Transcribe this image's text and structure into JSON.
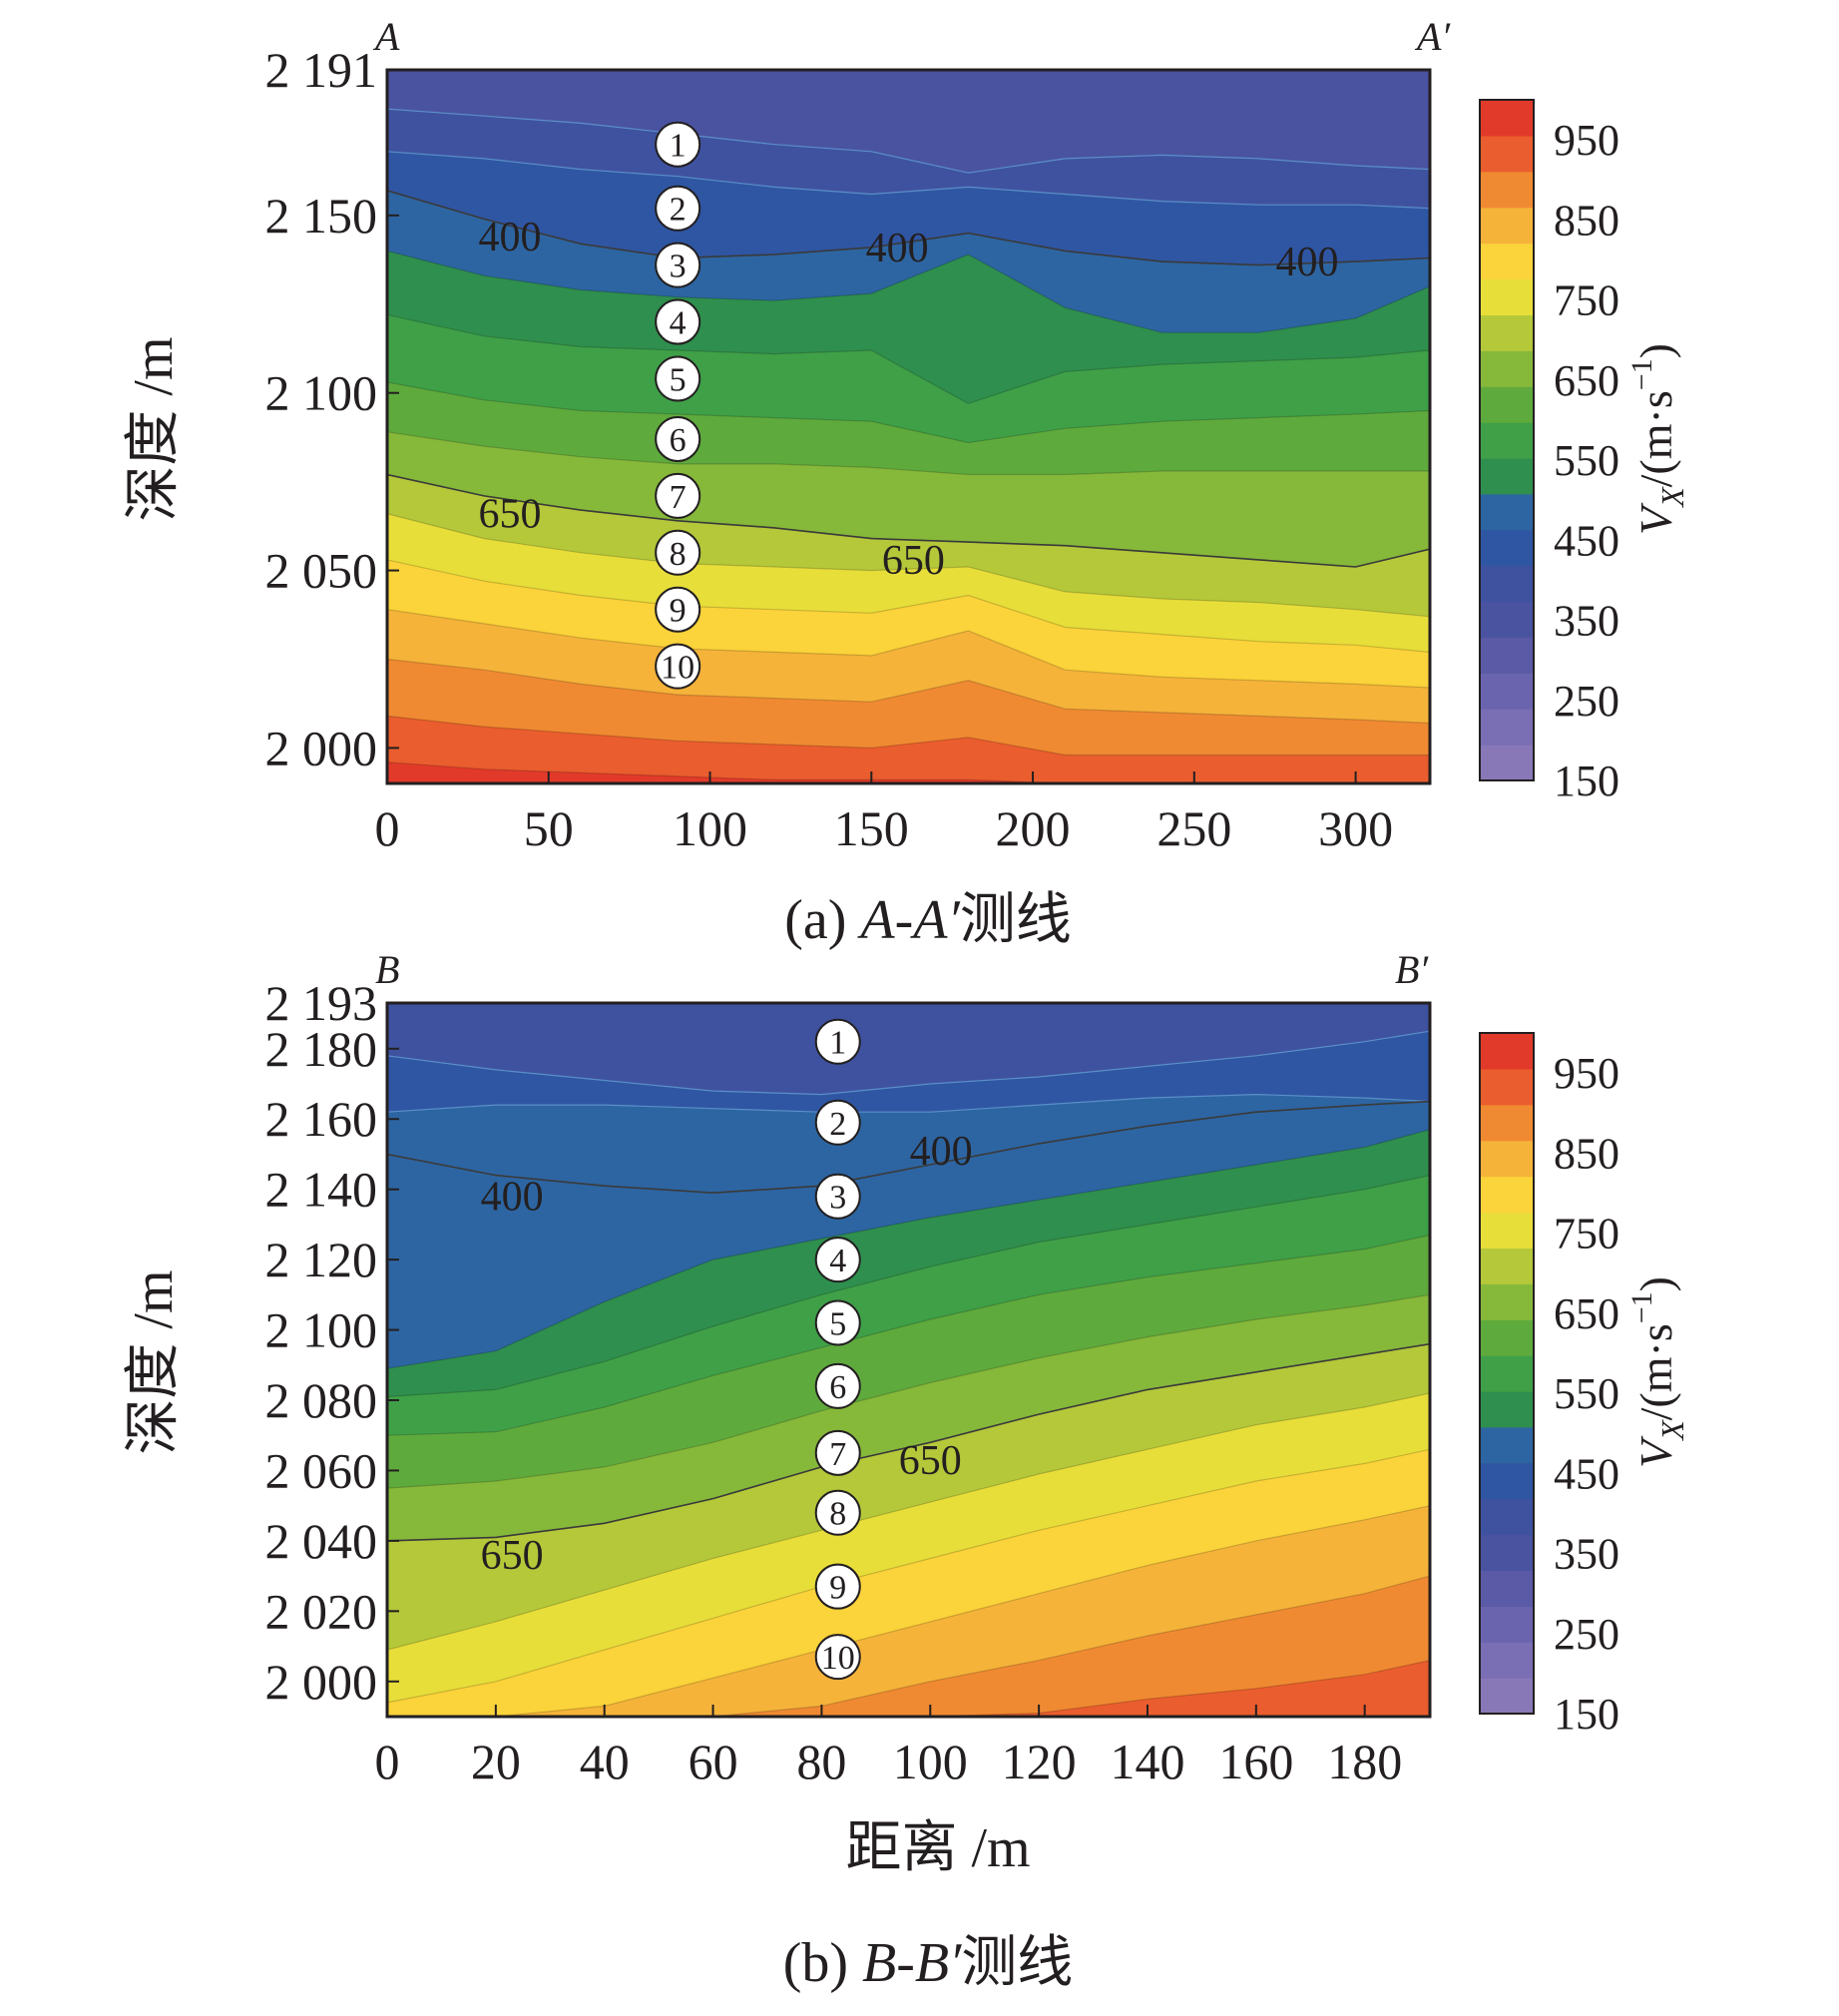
{
  "chart_data": [
    {
      "type": "contour",
      "caption_prefix": "(a) ",
      "caption_line": "A-A′",
      "caption_suffix": "测线",
      "corner_left": "A",
      "corner_right": "A′",
      "xlabel": "",
      "ylabel": "深度 /m",
      "xlim": [
        0,
        323
      ],
      "ylim": [
        1990,
        2191
      ],
      "xticks": [
        0,
        50,
        100,
        150,
        200,
        250,
        300
      ],
      "xtick_labels": [
        "0",
        "50",
        "100",
        "150",
        "200",
        "250",
        "300"
      ],
      "yticks": [
        2191,
        2150,
        2100,
        2050,
        2000
      ],
      "ytick_labels": [
        "2 191",
        "2 150",
        "2 100",
        "2 050",
        "2 000"
      ],
      "contour_levels": [
        150,
        200,
        250,
        300,
        350,
        400,
        450,
        500,
        550,
        600,
        650,
        700,
        750,
        800,
        850,
        900,
        950,
        1000
      ],
      "level_lines": [
        {
          "x": [
            0,
            30,
            60,
            90,
            120,
            150,
            180,
            210,
            240,
            270,
            300,
            323
          ],
          "y": [
            2180,
            2178,
            2176,
            2173,
            2170,
            2168,
            2162,
            2166,
            2167,
            2166,
            2164,
            2163
          ]
        },
        {
          "x": [
            0,
            30,
            60,
            90,
            120,
            150,
            180,
            210,
            240,
            270,
            300,
            323
          ],
          "y": [
            2168,
            2166,
            2163,
            2161,
            2158,
            2156,
            2158,
            2156,
            2154,
            2153,
            2153,
            2152
          ]
        },
        {
          "x": [
            0,
            30,
            60,
            90,
            120,
            150,
            180,
            210,
            240,
            270,
            300,
            323
          ],
          "y": [
            2157,
            2149,
            2142,
            2138,
            2139,
            2141,
            2145,
            2140,
            2137,
            2136,
            2137,
            2138
          ]
        },
        {
          "x": [
            0,
            30,
            60,
            90,
            120,
            150,
            180,
            210,
            240,
            270,
            300,
            323
          ],
          "y": [
            2140,
            2133,
            2129,
            2127,
            2126,
            2128,
            2139,
            2124,
            2117,
            2117,
            2121,
            2130
          ]
        },
        {
          "x": [
            0,
            30,
            60,
            90,
            120,
            150,
            180,
            210,
            240,
            270,
            300,
            323
          ],
          "y": [
            2122,
            2116,
            2113,
            2112,
            2111,
            2112,
            2097,
            2106,
            2108,
            2109,
            2110,
            2112
          ]
        },
        {
          "x": [
            0,
            30,
            60,
            90,
            120,
            150,
            180,
            210,
            240,
            270,
            300,
            323
          ],
          "y": [
            2103,
            2098,
            2095,
            2094,
            2093,
            2092,
            2086,
            2090,
            2092,
            2093,
            2094,
            2095
          ]
        },
        {
          "x": [
            0,
            30,
            60,
            90,
            120,
            150,
            180,
            210,
            240,
            270,
            300,
            323
          ],
          "y": [
            2089,
            2085,
            2082,
            2080,
            2080,
            2079,
            2077,
            2077,
            2078,
            2078,
            2078,
            2078
          ]
        },
        {
          "x": [
            0,
            30,
            60,
            90,
            120,
            150,
            180,
            210,
            240,
            270,
            300,
            323
          ],
          "y": [
            2077,
            2071,
            2067,
            2064,
            2062,
            2059,
            2058,
            2057,
            2055,
            2053,
            2051,
            2056
          ]
        },
        {
          "x": [
            0,
            30,
            60,
            90,
            120,
            150,
            180,
            210,
            240,
            270,
            300,
            323
          ],
          "y": [
            2066,
            2059,
            2055,
            2052,
            2051,
            2050,
            2051,
            2044,
            2042,
            2041,
            2039,
            2037
          ]
        },
        {
          "x": [
            0,
            30,
            60,
            90,
            120,
            150,
            180,
            210,
            240,
            270,
            300,
            323
          ],
          "y": [
            2053,
            2047,
            2043,
            2040,
            2039,
            2038,
            2043,
            2034,
            2032,
            2030,
            2029,
            2027
          ]
        },
        {
          "x": [
            0,
            30,
            60,
            90,
            120,
            150,
            180,
            210,
            240,
            270,
            300,
            323
          ],
          "y": [
            2039,
            2035,
            2031,
            2028,
            2027,
            2026,
            2033,
            2022,
            2020,
            2019,
            2018,
            2017
          ]
        },
        {
          "x": [
            0,
            30,
            60,
            90,
            120,
            150,
            180,
            210,
            240,
            270,
            300,
            323
          ],
          "y": [
            2025,
            2022,
            2018,
            2015,
            2014,
            2013,
            2019,
            2011,
            2010,
            2009,
            2008,
            2007
          ]
        },
        {
          "x": [
            0,
            30,
            60,
            90,
            120,
            150,
            180,
            210,
            240,
            270,
            300,
            323
          ],
          "y": [
            2009,
            2006,
            2004,
            2002,
            2001,
            2000,
            2003,
            1998,
            1998,
            1998,
            1998,
            1998
          ]
        },
        {
          "x": [
            0,
            30,
            60,
            90,
            120,
            150,
            180,
            210,
            240,
            270,
            300,
            323
          ],
          "y": [
            1996,
            1994,
            1993,
            1992,
            1991,
            1991,
            1991,
            1990,
            1990,
            1990,
            1990,
            1990
          ]
        }
      ],
      "line_400": {
        "x": [
          0,
          30,
          60,
          90,
          120,
          150,
          180,
          210,
          240,
          270,
          300,
          323
        ],
        "y": [
          2157,
          2149,
          2142,
          2138,
          2139,
          2141,
          2145,
          2140,
          2137,
          2136,
          2137,
          2138
        ]
      },
      "line_650": {
        "x": [
          0,
          30,
          60,
          90,
          120,
          150,
          180,
          210,
          240,
          270,
          300,
          323
        ],
        "y": [
          2077,
          2071,
          2067,
          2064,
          2062,
          2059,
          2058,
          2057,
          2055,
          2053,
          2051,
          2056
        ]
      },
      "contour_labels": [
        {
          "text": "400",
          "x": 38,
          "y": 2144
        },
        {
          "text": "400",
          "x": 158,
          "y": 2141
        },
        {
          "text": "400",
          "x": 285,
          "y": 2137
        },
        {
          "text": "650",
          "x": 38,
          "y": 2066
        },
        {
          "text": "650",
          "x": 163,
          "y": 2053
        }
      ],
      "markers": {
        "x": 90,
        "labels": [
          "1",
          "2",
          "3",
          "4",
          "5",
          "6",
          "7",
          "8",
          "9",
          "10"
        ],
        "y": [
          2170,
          2152,
          2136,
          2120,
          2104,
          2087,
          2071,
          2055,
          2039,
          2023
        ]
      }
    },
    {
      "type": "contour",
      "caption_prefix": "(b) ",
      "caption_line": "B-B′",
      "caption_suffix": "测线",
      "corner_left": "B",
      "corner_right": "B′",
      "xlabel": "距离 /m",
      "ylabel": "深度 /m",
      "xlim": [
        0,
        192
      ],
      "ylim": [
        1990,
        2193
      ],
      "xticks": [
        0,
        20,
        40,
        60,
        80,
        100,
        120,
        140,
        160,
        180
      ],
      "xtick_labels": [
        "0",
        "20",
        "40",
        "60",
        "80",
        "100",
        "120",
        "140",
        "160",
        "180"
      ],
      "yticks": [
        2193,
        2180,
        2160,
        2140,
        2120,
        2100,
        2080,
        2060,
        2040,
        2020,
        2000
      ],
      "ytick_labels": [
        "2 193",
        "2 180",
        "2 160",
        "2 140",
        "2 120",
        "2 100",
        "2 080",
        "2 060",
        "2 040",
        "2 020",
        "2 000"
      ],
      "contour_levels": [
        150,
        200,
        250,
        300,
        350,
        400,
        450,
        500,
        550,
        600,
        650,
        700,
        750,
        800,
        850,
        900,
        950,
        1000
      ],
      "level_lines": [
        {
          "x": [
            0,
            20,
            40,
            60,
            80,
            100,
            120,
            140,
            160,
            180,
            192
          ],
          "y": [
            2178,
            2174,
            2171,
            2168,
            2167,
            2170,
            2172,
            2175,
            2178,
            2182,
            2185
          ]
        },
        {
          "x": [
            0,
            20,
            40,
            60,
            80,
            100,
            120,
            140,
            160,
            180,
            192
          ],
          "y": [
            2162,
            2164,
            2164,
            2163,
            2162,
            2162,
            2164,
            2166,
            2167,
            2166,
            2165
          ]
        },
        {
          "x": [
            0,
            20,
            40,
            60,
            80,
            100,
            120,
            140,
            160,
            180,
            192
          ],
          "y": [
            2089,
            2094,
            2108,
            2120,
            2126,
            2132,
            2137,
            2142,
            2147,
            2152,
            2157
          ]
        },
        {
          "x": [
            0,
            20,
            40,
            60,
            80,
            100,
            120,
            140,
            160,
            180,
            192
          ],
          "y": [
            2081,
            2083,
            2091,
            2101,
            2110,
            2118,
            2125,
            2130,
            2135,
            2140,
            2144
          ]
        },
        {
          "x": [
            0,
            20,
            40,
            60,
            80,
            100,
            120,
            140,
            160,
            180,
            192
          ],
          "y": [
            2070,
            2071,
            2078,
            2087,
            2095,
            2103,
            2110,
            2115,
            2119,
            2123,
            2127
          ]
        },
        {
          "x": [
            0,
            20,
            40,
            60,
            80,
            100,
            120,
            140,
            160,
            180,
            192
          ],
          "y": [
            2055,
            2057,
            2061,
            2068,
            2077,
            2085,
            2092,
            2098,
            2103,
            2107,
            2110
          ]
        },
        {
          "x": [
            0,
            20,
            40,
            60,
            80,
            100,
            120,
            140,
            160,
            180,
            192
          ],
          "y": [
            2040,
            2041,
            2045,
            2052,
            2061,
            2068,
            2076,
            2083,
            2088,
            2093,
            2096
          ]
        },
        {
          "x": [
            0,
            20,
            40,
            60,
            80,
            100,
            120,
            140,
            160,
            180,
            192
          ],
          "y": [
            2009,
            2017,
            2026,
            2035,
            2043,
            2051,
            2059,
            2066,
            2073,
            2078,
            2082
          ]
        },
        {
          "x": [
            0,
            20,
            40,
            60,
            80,
            100,
            120,
            140,
            160,
            180,
            192
          ],
          "y": [
            1994,
            2000,
            2009,
            2018,
            2027,
            2035,
            2043,
            2050,
            2057,
            2062,
            2066
          ]
        },
        {
          "x": [
            0,
            20,
            40,
            60,
            80,
            100,
            120,
            140,
            160,
            180,
            192
          ],
          "y": [
            1990,
            1990,
            1993,
            2001,
            2009,
            2017,
            2025,
            2033,
            2040,
            2046,
            2050
          ]
        },
        {
          "x": [
            0,
            20,
            40,
            60,
            80,
            100,
            120,
            140,
            160,
            180,
            192
          ],
          "y": [
            1990,
            1990,
            1990,
            1990,
            1993,
            2000,
            2006,
            2013,
            2019,
            2025,
            2030
          ]
        },
        {
          "x": [
            0,
            20,
            40,
            60,
            80,
            100,
            120,
            140,
            160,
            180,
            192
          ],
          "y": [
            1990,
            1990,
            1990,
            1990,
            1990,
            1990,
            1991,
            1995,
            1998,
            2002,
            2006
          ]
        }
      ],
      "line_400": {
        "x": [
          0,
          20,
          40,
          60,
          80,
          100,
          120,
          140,
          160,
          180,
          192
        ],
        "y": [
          2150,
          2144,
          2141,
          2139,
          2141,
          2147,
          2153,
          2158,
          2162,
          2164,
          2165
        ]
      },
      "line_650": {
        "x": [
          0,
          20,
          40,
          60,
          80,
          100,
          120,
          140,
          160,
          180,
          192
        ],
        "y": [
          2040,
          2041,
          2045,
          2052,
          2061,
          2068,
          2076,
          2083,
          2088,
          2093,
          2096
        ]
      },
      "contour_labels": [
        {
          "text": "400",
          "x": 23,
          "y": 2138
        },
        {
          "text": "400",
          "x": 102,
          "y": 2151
        },
        {
          "text": "650",
          "x": 23,
          "y": 2036
        },
        {
          "text": "650",
          "x": 100,
          "y": 2063
        }
      ],
      "markers": {
        "x": 83,
        "labels": [
          "1",
          "2",
          "3",
          "4",
          "5",
          "6",
          "7",
          "8",
          "9",
          "10"
        ],
        "y": [
          2182,
          2159,
          2138,
          2120,
          2102,
          2084,
          2065,
          2048,
          2027,
          2007
        ]
      }
    }
  ],
  "colorbar": {
    "title_main": "V",
    "title_sub": "X",
    "title_unit": "/(m·s",
    "title_exp": "−1",
    "title_close": ")",
    "min": 150,
    "max": 1000,
    "tick_values": [
      150,
      250,
      350,
      450,
      550,
      650,
      750,
      850,
      950
    ],
    "tick_labels": [
      "150",
      "250",
      "350",
      "450",
      "550",
      "650",
      "750",
      "850",
      "950"
    ],
    "colors": [
      "#8878b8",
      "#7a6eb4",
      "#6a64ae",
      "#5a5aa6",
      "#4a53a0",
      "#3f52a0",
      "#2f56a3",
      "#2d65a2",
      "#2f8f4e",
      "#3fa048",
      "#5faa3d",
      "#86b83a",
      "#b4c83a",
      "#e8de3a",
      "#fbd33a",
      "#f5b33a",
      "#f08a32",
      "#ea5d2e",
      "#e23a2a"
    ]
  },
  "palette": {
    "contour_line": "#3a3a3a",
    "contour_line_blue": "#5a8fc8",
    "marker_fill": "#ffffff",
    "marker_stroke": "#231f20"
  }
}
